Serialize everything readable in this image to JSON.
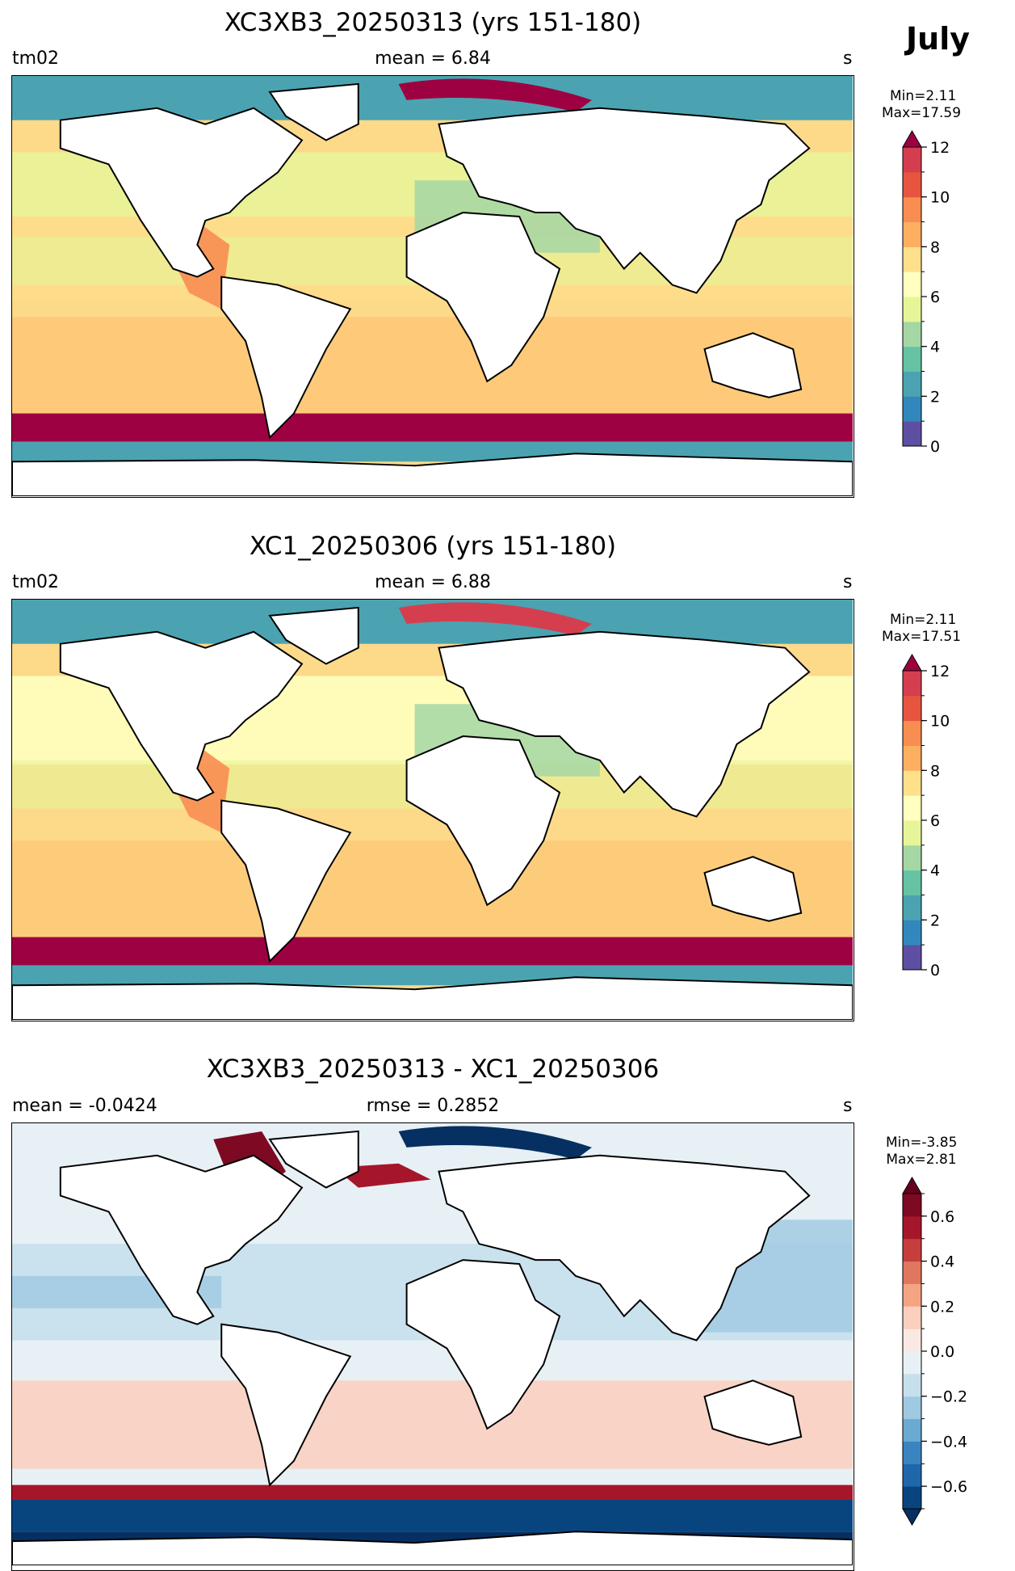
{
  "month": "July",
  "panels": [
    {
      "title": "XC3XB3_20250313 (yrs 151-180)",
      "left_label": "tm02",
      "center_label": "mean = 6.84",
      "right_label": "s",
      "min_text": "Min=2.11",
      "max_text": "Max=17.59"
    },
    {
      "title": "XC1_20250306 (yrs 151-180)",
      "left_label": "tm02",
      "center_label": "mean = 6.88",
      "right_label": "s",
      "min_text": "Min=2.11",
      "max_text": "Max=17.51"
    },
    {
      "title": "XC3XB3_20250313 - XC1_20250306",
      "left_label": "mean = -0.0424",
      "center_label": "rmse = 0.2852",
      "right_label": "s",
      "min_text": "Min=-3.85",
      "max_text": "Max=2.81"
    }
  ],
  "colorbars": [
    {
      "levels": [
        0,
        1,
        2,
        3,
        4,
        5,
        6,
        7,
        8,
        9,
        10,
        11,
        12
      ],
      "tick_values": [
        0,
        2,
        4,
        6,
        8,
        10,
        12
      ],
      "tick_labels": [
        "0",
        "2",
        "4",
        "6",
        "8",
        "10",
        "12"
      ],
      "colors": [
        "#5e4fa2",
        "#3288bd",
        "#4ba3b1",
        "#66c2a5",
        "#a5d7a4",
        "#e6f598",
        "#ffffbf",
        "#fee08b",
        "#fdae61",
        "#f88d52",
        "#e8553f",
        "#d53e4f"
      ],
      "extend_max_color": "#9e0142"
    },
    {
      "levels": [
        0,
        1,
        2,
        3,
        4,
        5,
        6,
        7,
        8,
        9,
        10,
        11,
        12
      ],
      "tick_values": [
        0,
        2,
        4,
        6,
        8,
        10,
        12
      ],
      "tick_labels": [
        "0",
        "2",
        "4",
        "6",
        "8",
        "10",
        "12"
      ],
      "colors": [
        "#5e4fa2",
        "#3288bd",
        "#4ba3b1",
        "#66c2a5",
        "#a5d7a4",
        "#e6f598",
        "#ffffbf",
        "#fee08b",
        "#fdae61",
        "#f88d52",
        "#e8553f",
        "#d53e4f"
      ],
      "extend_max_color": "#9e0142"
    },
    {
      "levels": [
        -0.7,
        -0.6,
        -0.5,
        -0.4,
        -0.3,
        -0.2,
        -0.1,
        0.0,
        0.1,
        0.2,
        0.3,
        0.4,
        0.5,
        0.6,
        0.7
      ],
      "tick_values": [
        -0.6,
        -0.4,
        -0.2,
        0.0,
        0.2,
        0.4,
        0.6
      ],
      "tick_labels": [
        "−0.6",
        "−0.4",
        "−0.2",
        "0.0",
        "0.2",
        "0.4",
        "0.6"
      ],
      "colors": [
        "#08457f",
        "#2066ab",
        "#3a85c0",
        "#6aa9d2",
        "#9ec9e1",
        "#c6dfed",
        "#e7f0f5",
        "#fae9e2",
        "#fbcfbd",
        "#f4a483",
        "#e0765e",
        "#c63f3c",
        "#a5162b",
        "#7d0a22"
      ],
      "extend_min_color": "#053061",
      "extend_max_color": "#67001f"
    }
  ],
  "chart_data": [
    {
      "type": "heatmap",
      "title": "XC3XB3_20250313 (yrs 151-180)",
      "variable": "tm02",
      "units": "s",
      "mean": 6.84,
      "min": 2.11,
      "max": 17.59,
      "colorbar_range": [
        0,
        12
      ],
      "colorbar_extend": "max"
    },
    {
      "type": "heatmap",
      "title": "XC1_20250306 (yrs 151-180)",
      "variable": "tm02",
      "units": "s",
      "mean": 6.88,
      "min": 2.11,
      "max": 17.51,
      "colorbar_range": [
        0,
        12
      ],
      "colorbar_extend": "max"
    },
    {
      "type": "heatmap",
      "title": "XC3XB3_20250313 - XC1_20250306",
      "units": "s",
      "mean": -0.0424,
      "rmse": 0.2852,
      "min": -3.85,
      "max": 2.81,
      "colorbar_range": [
        -0.7,
        0.7
      ],
      "colorbar_extend": "both"
    }
  ]
}
